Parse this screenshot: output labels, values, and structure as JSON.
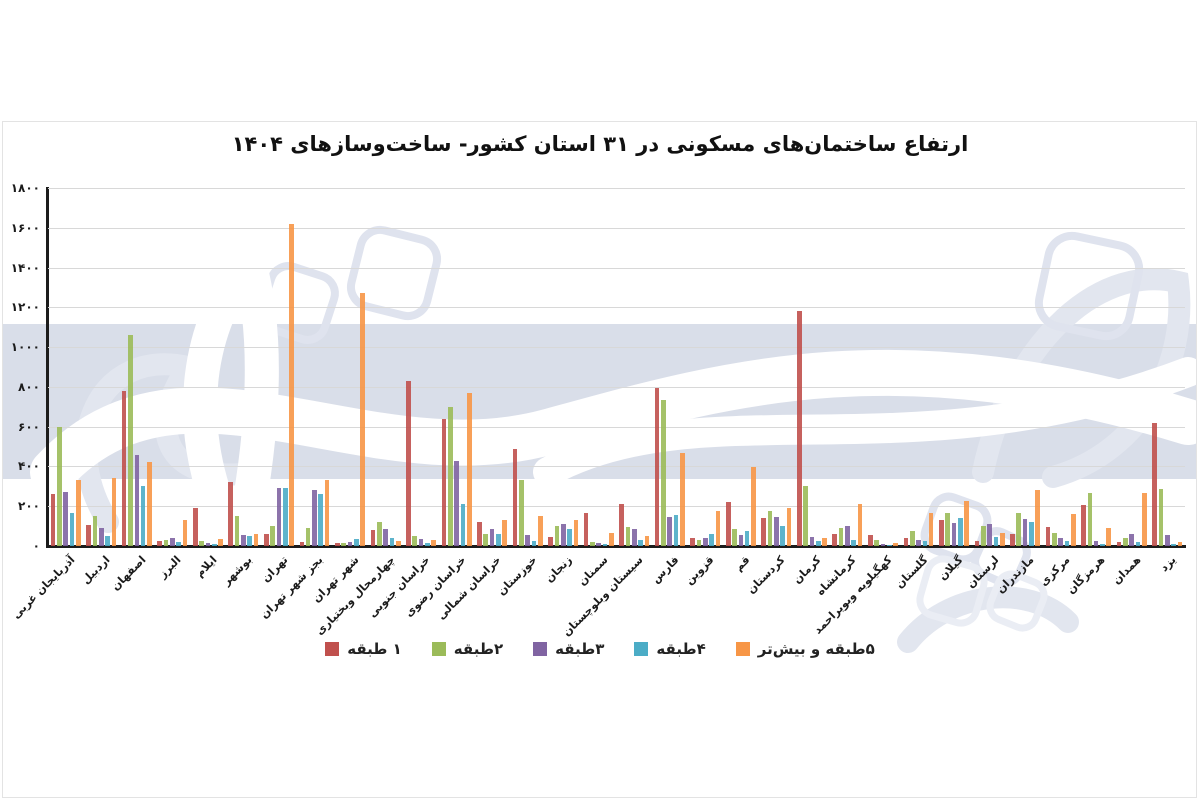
{
  "chart": {
    "title": "ارتفاع ساختمان‌های مسکونی در ۳۱ استان کشور- ساخت‌وسازهای ۱۴۰۴"
  },
  "watermark": {
    "band_color": "#d9dee9",
    "calligraphy_color": "#e2e6ef",
    "overlay_color": "#ffffff"
  },
  "chart_data": {
    "type": "bar",
    "title": "ارتفاع ساختمان‌های مسکونی در ۳۱ استان کشور- ساخت‌وسازهای ۱۴۰۴",
    "xlabel": "",
    "ylabel": "",
    "ylim": [
      0,
      1800
    ],
    "ytick_step": 200,
    "yticklabels": [
      "۰",
      "۲۰۰",
      "۴۰۰",
      "۶۰۰",
      "۸۰۰",
      "۱۰۰۰",
      "۱۲۰۰",
      "۱۴۰۰",
      "۱۶۰۰",
      "۱۸۰۰"
    ],
    "grid": true,
    "grid_color": "#d8d8d8",
    "axis_color": "#1c1c1c",
    "legend_position": "bottom",
    "rtl": true,
    "categories": [
      "آذربایجان غربی",
      "اردبیل",
      "اصفهان",
      "البرز",
      "ایلام",
      "بوشهر",
      "تهران",
      "بجز شهر تهران",
      "شهر تهران",
      "چهارمحال وبختیاری",
      "خراسان جنوبی",
      "خراسان رضوی",
      "خراسان شمالی",
      "خوزستان",
      "زنجان",
      "سمنان",
      "سیستان وبلوچستان",
      "فارس",
      "قزوین",
      "قم",
      "کردستان",
      "کرمان",
      "کرمانشاه",
      "کهگیلویه وبویراحمد",
      "گلستان",
      "گیلان",
      "لرستان",
      "مازندران",
      "مرکزی",
      "هرمزگان",
      "همدان",
      "یزد"
    ],
    "series": [
      {
        "name": "۱ طبقه",
        "color": "#C0504D",
        "values": [
          260,
          105,
          780,
          25,
          190,
          320,
          60,
          20,
          15,
          80,
          830,
          640,
          120,
          490,
          45,
          165,
          210,
          795,
          40,
          220,
          140,
          1180,
          60,
          55,
          40,
          130,
          25,
          60,
          95,
          205,
          20,
          620
        ]
      },
      {
        "name": "۲طبقه",
        "color": "#9BBB59",
        "values": [
          600,
          150,
          1060,
          30,
          25,
          150,
          100,
          90,
          15,
          120,
          50,
          700,
          60,
          330,
          100,
          20,
          95,
          735,
          30,
          85,
          175,
          300,
          90,
          30,
          75,
          165,
          100,
          165,
          65,
          265,
          40,
          285
        ]
      },
      {
        "name": "۳طبقه",
        "color": "#8064A2",
        "values": [
          270,
          90,
          460,
          40,
          15,
          55,
          290,
          280,
          20,
          85,
          35,
          425,
          85,
          55,
          110,
          15,
          85,
          145,
          40,
          55,
          145,
          45,
          100,
          10,
          30,
          115,
          110,
          135,
          40,
          25,
          60,
          55
        ]
      },
      {
        "name": "۴طبقه",
        "color": "#4BACC6",
        "values": [
          165,
          50,
          300,
          20,
          10,
          50,
          290,
          260,
          35,
          40,
          15,
          210,
          60,
          25,
          85,
          12,
          30,
          155,
          60,
          75,
          100,
          25,
          30,
          5,
          25,
          140,
          45,
          120,
          25,
          10,
          20,
          10
        ]
      },
      {
        "name": "۵طبقه و بیش‌تر",
        "color": "#F79646",
        "values": [
          330,
          340,
          420,
          130,
          35,
          60,
          1620,
          330,
          1270,
          25,
          30,
          770,
          130,
          150,
          130,
          65,
          50,
          470,
          175,
          395,
          190,
          40,
          210,
          15,
          165,
          225,
          65,
          280,
          160,
          90,
          265,
          20
        ]
      }
    ]
  }
}
